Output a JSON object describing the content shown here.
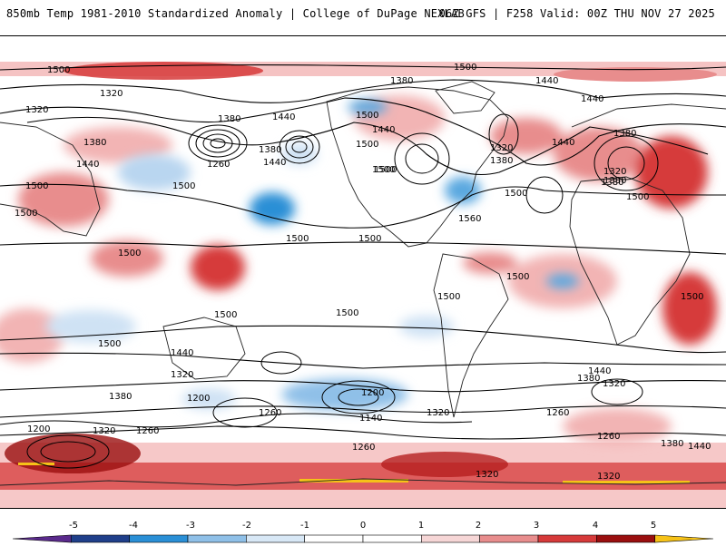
{
  "header": {
    "title": "850mb Temp 1981-2010 Standardized Anomaly | College of DuPage NEXLAB",
    "run_info": "06Z GFS | F258 Valid: 00Z THU NOV 27 2025"
  },
  "colorbar": {
    "labels": [
      "-5",
      "-4",
      "-3",
      "-2",
      "-1",
      "0",
      "1",
      "2",
      "3",
      "4",
      "5"
    ],
    "colors": [
      "#5a2a8c",
      "#1f3f8a",
      "#2a8fd6",
      "#8fc0e8",
      "#d8e8f6",
      "#ffffff",
      "#ffffff",
      "#f6d6d6",
      "#e88d8d",
      "#d63a3a",
      "#9a0f0f",
      "#f6c218"
    ]
  },
  "contours": {
    "labels": [
      "1500",
      "1500",
      "1440",
      "1320",
      "1380",
      "1320",
      "1440",
      "1380",
      "1500",
      "1500",
      "1380",
      "1260",
      "1380",
      "1440",
      "1440",
      "1500",
      "1380",
      "1500",
      "1440",
      "1320",
      "1380",
      "1440",
      "1500",
      "1440",
      "1380",
      "1320",
      "1380",
      "1500",
      "1500",
      "1500",
      "1500",
      "1560",
      "1500",
      "1500",
      "1500",
      "1500",
      "1500",
      "1500",
      "1500",
      "1500",
      "1440",
      "1500",
      "1380",
      "1320",
      "1320",
      "1200",
      "1260",
      "1200",
      "1140",
      "1320",
      "1260",
      "1260",
      "1200",
      "1320",
      "1260",
      "1440",
      "1380",
      "1260",
      "1320",
      "1380",
      "1440",
      "1320"
    ]
  },
  "colors": {
    "warm": "#e86a6a",
    "warm_light": "#f6cccc",
    "cool": "#2a8fd6",
    "cool_light": "#cfe2f4",
    "extreme_warm": "#f6c218"
  }
}
